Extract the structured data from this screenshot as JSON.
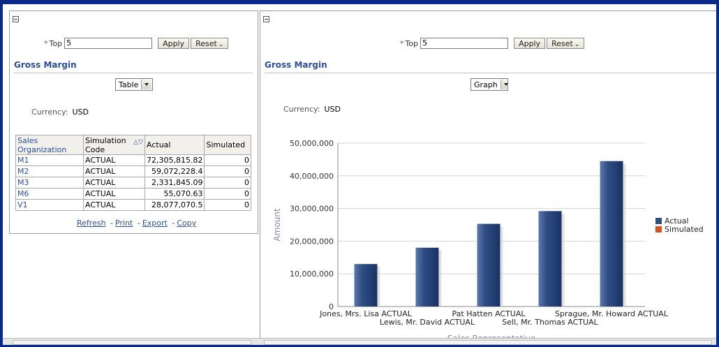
{
  "left": {
    "top_label": "Top",
    "top_value": "5",
    "apply_label": "Apply",
    "reset_label": "Reset",
    "section_title": "Gross Margin",
    "view_select": "Table",
    "currency_label": "Currency:",
    "currency_value": "USD",
    "columns": [
      "Sales Organization",
      "Simulation Code",
      "Actual",
      "Simulated"
    ],
    "rows": [
      {
        "org": "M1",
        "code": "ACTUAL",
        "actual": "72,305,815.82",
        "simulated": "0"
      },
      {
        "org": "M2",
        "code": "ACTUAL",
        "actual": "59,072,228.4",
        "simulated": "0"
      },
      {
        "org": "M3",
        "code": "ACTUAL",
        "actual": "2,331,845.09",
        "simulated": "0"
      },
      {
        "org": "M6",
        "code": "ACTUAL",
        "actual": "55,070.63",
        "simulated": "0"
      },
      {
        "org": "V1",
        "code": "ACTUAL",
        "actual": "28,077,070.5",
        "simulated": "0"
      }
    ],
    "links": {
      "refresh": "Refresh",
      "print": "Print",
      "export": "Export",
      "copy": "Copy"
    }
  },
  "right": {
    "top_label": "Top",
    "top_value": "5",
    "apply_label": "Apply",
    "reset_label": "Reset",
    "section_title": "Gross Margin",
    "view_select": "Graph",
    "currency_label": "Currency:",
    "currency_value": "USD"
  },
  "chart_data": {
    "type": "bar",
    "title": "",
    "xlabel": "Sales Representative",
    "ylabel": "Amount",
    "ylim": [
      0,
      50000000
    ],
    "yticks": [
      0,
      10000000,
      20000000,
      30000000,
      40000000,
      50000000
    ],
    "ytick_labels": [
      "0",
      "10,000,000",
      "20,000,000",
      "30,000,000",
      "40,000,000",
      "50,000,000"
    ],
    "categories": [
      "Jones, Mrs. Lisa ACTUAL",
      "Lewis, Mr. David ACTUAL",
      "Pat Hatten ACTUAL",
      "Sell, Mr. Thomas ACTUAL",
      "Sprague, Mr. Howard ACTUAL"
    ],
    "series": [
      {
        "name": "Actual",
        "color": "#2e4d84",
        "values": [
          13000000,
          18000000,
          25300000,
          29200000,
          44500000
        ]
      },
      {
        "name": "Simulated",
        "color": "#d2541f",
        "values": [
          0,
          0,
          0,
          0,
          0
        ]
      }
    ],
    "grid": true,
    "legend": "right"
  },
  "colors": {
    "frame": "#0a2a8a",
    "link": "#2b4fa0",
    "bar": "#2e4d84",
    "simulated": "#d2541f"
  }
}
